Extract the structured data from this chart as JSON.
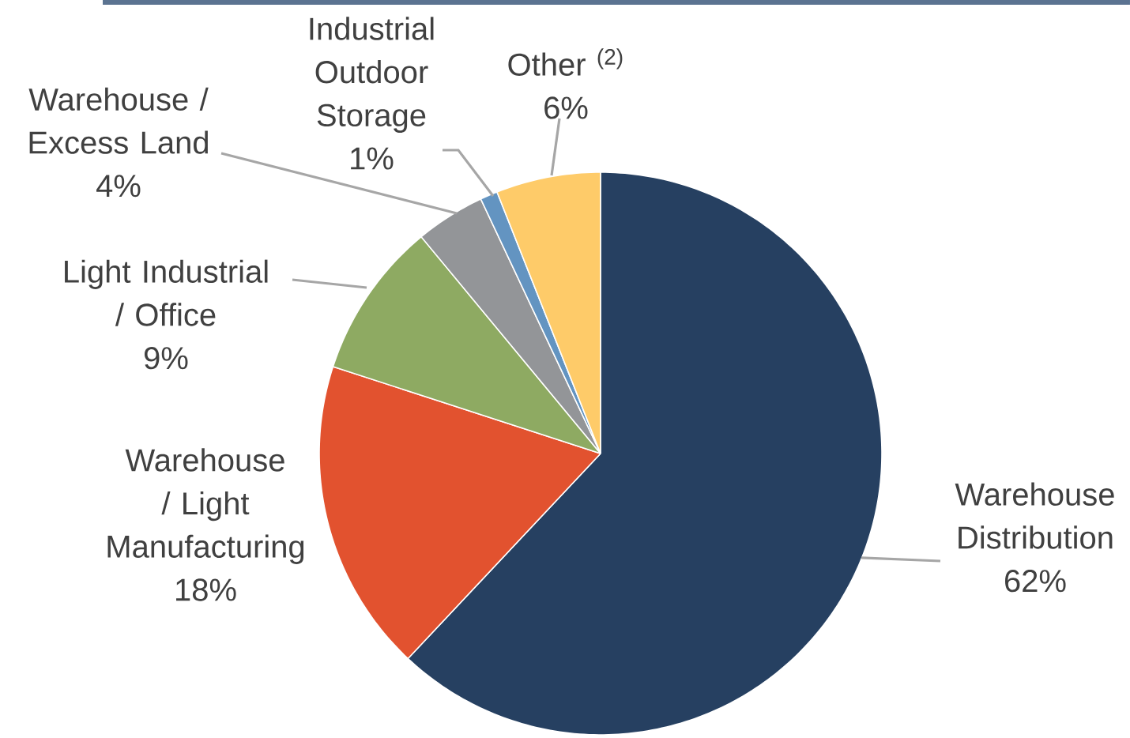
{
  "chart_data": {
    "type": "pie",
    "categories": [
      "Warehouse Distribution",
      "Warehouse / Light Manufacturing",
      "Light Industrial / Office",
      "Warehouse / Excess Land",
      "Industrial Outdoor Storage",
      "Other $^{(2)}$"
    ],
    "values": [
      62,
      18,
      9,
      4,
      1,
      6
    ],
    "value_labels": [
      "62%",
      "18%",
      "9%",
      "4%",
      "1%",
      "6%"
    ],
    "colors": [
      "#264061",
      "#e2522f",
      "#8eaa62",
      "#939598",
      "#6394c1",
      "#fecb69"
    ]
  }
}
